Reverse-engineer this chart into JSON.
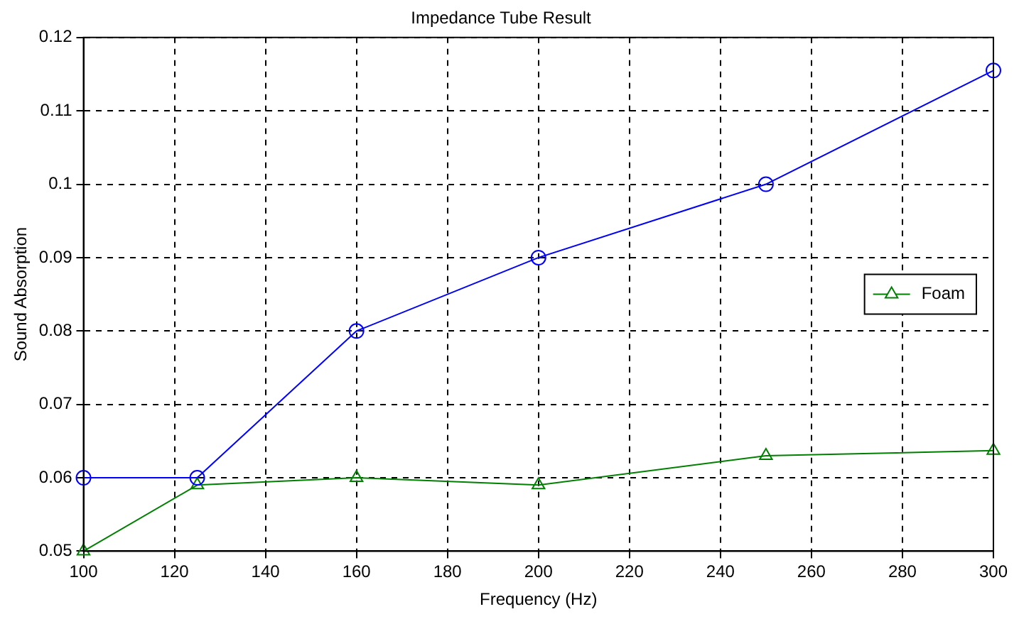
{
  "chart_data": {
    "type": "line",
    "title": "Impedance Tube Result",
    "xlabel": "Frequency (Hz)",
    "ylabel": "Sound Absorption",
    "x": [
      100,
      125,
      160,
      200,
      250,
      300
    ],
    "series": [
      {
        "color": "#0000ff",
        "marker": "circle",
        "values": [
          0.06,
          0.06,
          0.08,
          0.09,
          0.1,
          0.1155
        ]
      },
      {
        "name": "Foam",
        "color": "#008000",
        "marker": "triangle",
        "values": [
          0.05,
          0.059,
          0.06,
          0.059,
          0.063,
          0.0637
        ]
      }
    ],
    "xlim": [
      100,
      300
    ],
    "xticks": [
      100,
      120,
      140,
      160,
      180,
      200,
      220,
      240,
      260,
      280,
      300
    ],
    "ylim": [
      0.05,
      0.12
    ],
    "yticks": [
      0.05,
      0.06,
      0.07,
      0.08,
      0.09,
      0.1,
      0.11,
      0.12
    ],
    "grid": true,
    "legend": "right",
    "line_style": "solid"
  }
}
